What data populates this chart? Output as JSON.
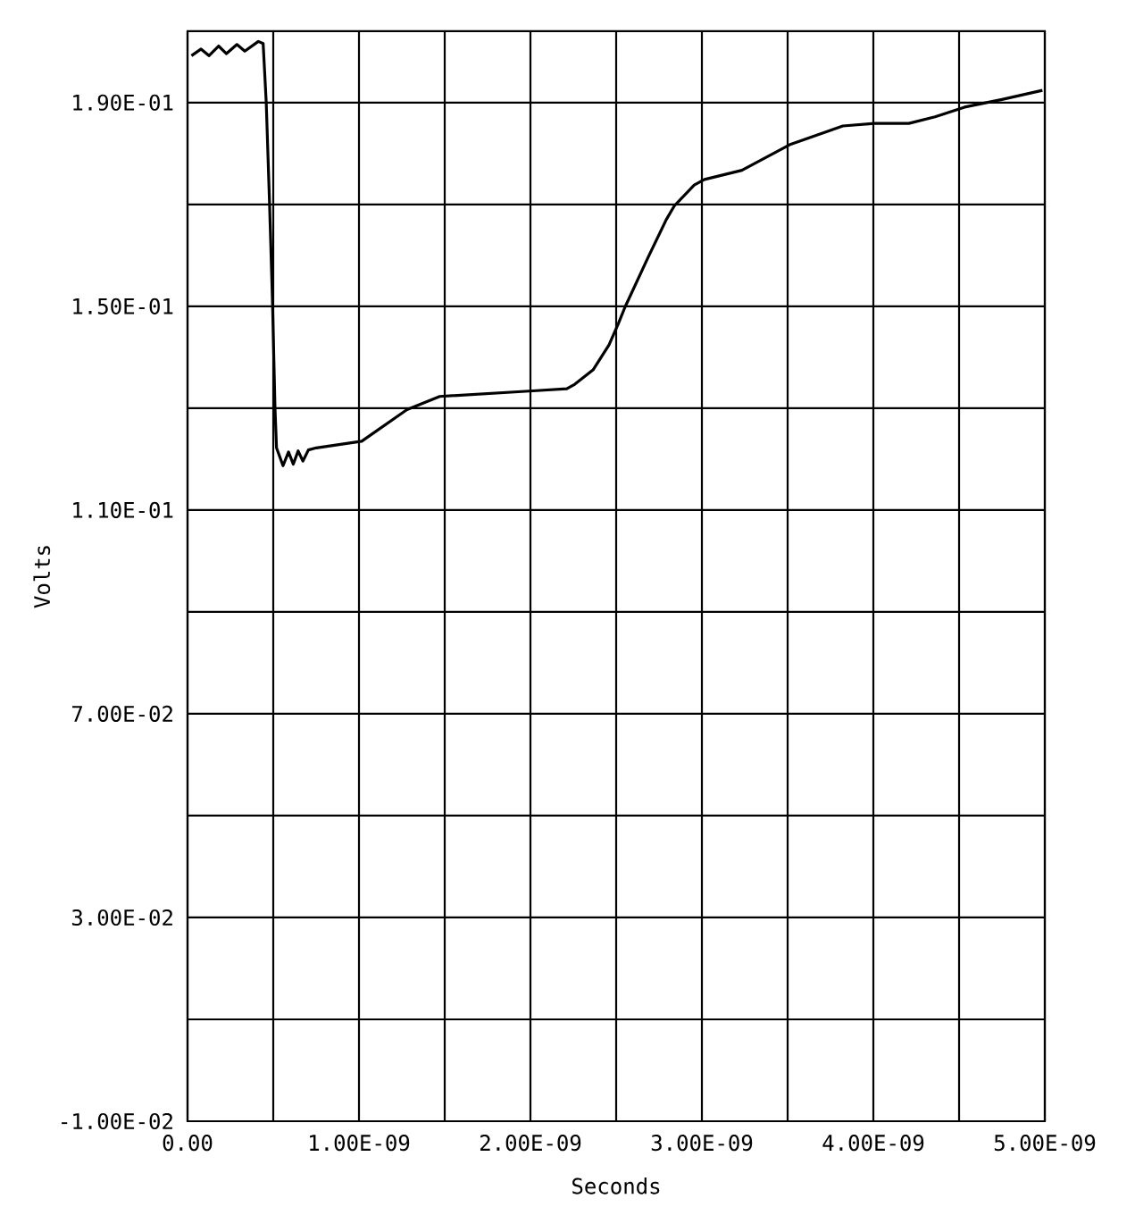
{
  "chart_data": {
    "type": "line",
    "xlabel": "Seconds",
    "ylabel": "Volts",
    "x": [
      2.3e-11,
      7.9e-11,
      1.25e-10,
      1.81e-10,
      2.27e-10,
      2.88e-10,
      3.34e-10,
      4.13e-10,
      4.41e-10,
      4.59e-10,
      4.78e-10,
      4.96e-10,
      5.1e-10,
      5.19e-10,
      5.57e-10,
      5.89e-10,
      6.17e-10,
      6.45e-10,
      6.73e-10,
      7.05e-10,
      7.51e-10,
      1.016e-09,
      1.28e-09,
      1.471e-09,
      2.013e-09,
      2.212e-09,
      2.259e-09,
      2.365e-09,
      2.458e-09,
      2.514e-09,
      2.551e-09,
      2.686e-09,
      2.792e-09,
      2.839e-09,
      2.955e-09,
      3.015e-09,
      3.233e-09,
      3.511e-09,
      3.822e-09,
      4.007e-09,
      4.207e-09,
      4.36e-09,
      4.532e-09,
      4.75e-09,
      4.986e-09
    ],
    "values": [
      0.1992,
      0.2005,
      0.1992,
      0.2011,
      0.1996,
      0.2014,
      0.2001,
      0.202,
      0.2016,
      0.19,
      0.1706,
      0.1504,
      0.1301,
      0.1222,
      0.1187,
      0.1214,
      0.119,
      0.1216,
      0.1196,
      0.1218,
      0.1222,
      0.1235,
      0.1297,
      0.1323,
      0.1334,
      0.1338,
      0.1347,
      0.1375,
      0.1424,
      0.1467,
      0.1498,
      0.1596,
      0.167,
      0.1697,
      0.1738,
      0.1749,
      0.1767,
      0.1817,
      0.1854,
      0.1859,
      0.1859,
      0.1872,
      0.1891,
      0.1906,
      0.1924
    ],
    "color": "#000000",
    "xlim": [
      0,
      5e-09
    ],
    "xticks": [
      {
        "value": 0,
        "label": "0.00"
      },
      {
        "value": 5e-10,
        "label": null
      },
      {
        "value": 1e-09,
        "label": "1.00E-09"
      },
      {
        "value": 1.5e-09,
        "label": null
      },
      {
        "value": 2e-09,
        "label": "2.00E-09"
      },
      {
        "value": 2.5e-09,
        "label": null
      },
      {
        "value": 3e-09,
        "label": "3.00E-09"
      },
      {
        "value": 3.5e-09,
        "label": null
      },
      {
        "value": 4e-09,
        "label": "4.00E-09"
      },
      {
        "value": 4.5e-09,
        "label": null
      },
      {
        "value": 5e-09,
        "label": "5.00E-09"
      }
    ],
    "ylim": [
      -0.01,
      0.204
    ],
    "yticks": [
      {
        "value": -0.01,
        "label": "-1.00E-02"
      },
      {
        "value": 0.01,
        "label": null
      },
      {
        "value": 0.03,
        "label": "3.00E-02"
      },
      {
        "value": 0.05,
        "label": null
      },
      {
        "value": 0.07,
        "label": "7.00E-02"
      },
      {
        "value": 0.09,
        "label": null
      },
      {
        "value": 0.11,
        "label": "1.10E-01"
      },
      {
        "value": 0.13,
        "label": null
      },
      {
        "value": 0.15,
        "label": "1.50E-01"
      },
      {
        "value": 0.17,
        "label": null
      },
      {
        "value": 0.19,
        "label": "1.90E-01"
      }
    ],
    "grid": true,
    "marker": "none",
    "line_style": "solid"
  }
}
